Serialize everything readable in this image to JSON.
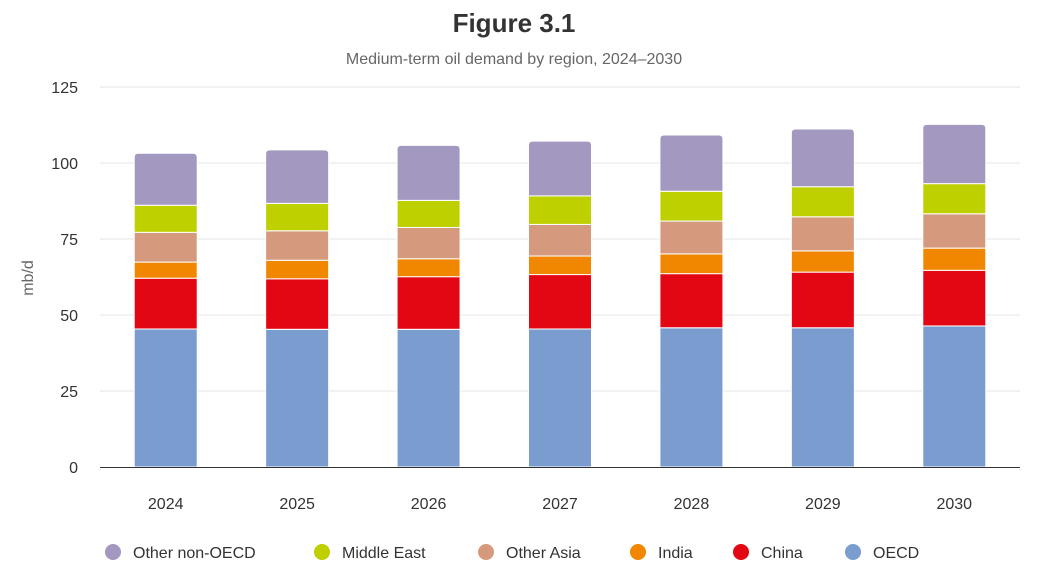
{
  "chart_data": {
    "type": "bar",
    "stacked": true,
    "title": "Figure 3.1",
    "subtitle": "Medium-term oil demand by region, 2024–2030",
    "xlabel": "",
    "ylabel": "mb/d",
    "ylim": [
      0,
      125
    ],
    "yticks": [
      0,
      25,
      50,
      75,
      100,
      125
    ],
    "grid": true,
    "legend_position": "bottom",
    "categories": [
      "2024",
      "2025",
      "2026",
      "2027",
      "2028",
      "2029",
      "2030"
    ],
    "series": [
      {
        "name": "OECD",
        "color": "#7b9ccf",
        "values": [
          45.4,
          45.3,
          45.3,
          45.4,
          45.8,
          45.8,
          46.4
        ]
      },
      {
        "name": "China",
        "color": "#e30613",
        "values": [
          16.7,
          16.6,
          17.3,
          17.9,
          17.8,
          18.3,
          18.3
        ]
      },
      {
        "name": "India",
        "color": "#f18700",
        "values": [
          5.3,
          6.1,
          5.9,
          6.1,
          6.5,
          7.0,
          7.3
        ]
      },
      {
        "name": "Other Asia",
        "color": "#d59a7d",
        "values": [
          9.8,
          9.7,
          10.3,
          10.4,
          10.8,
          11.2,
          11.3
        ]
      },
      {
        "name": "Middle East",
        "color": "#bed000",
        "values": [
          8.9,
          9.0,
          8.9,
          9.4,
          9.8,
          9.9,
          9.9
        ]
      },
      {
        "name": "Other non-OECD",
        "color": "#a298c0",
        "values": [
          17.1,
          17.6,
          18.1,
          18.0,
          18.5,
          19.0,
          19.5
        ]
      }
    ],
    "legend_order": [
      "Other non-OECD",
      "Middle East",
      "Other Asia",
      "India",
      "China",
      "OECD"
    ]
  }
}
